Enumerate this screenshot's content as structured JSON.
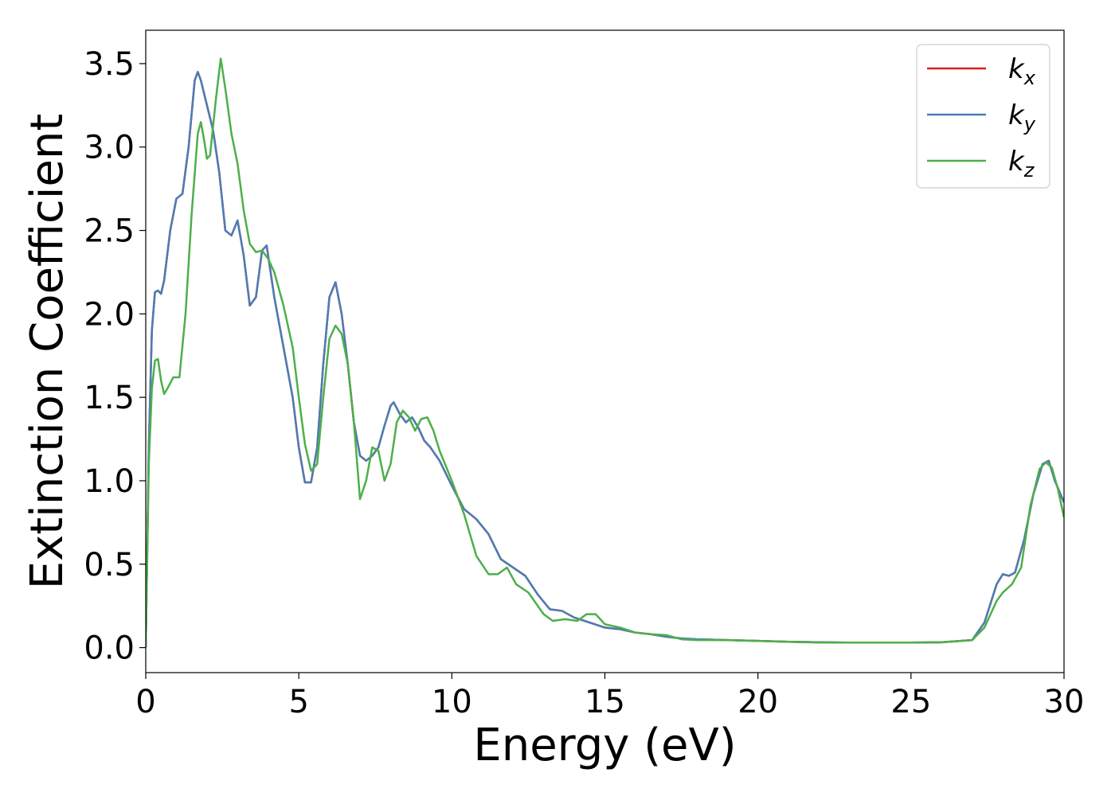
{
  "chart_data": {
    "type": "line",
    "xlabel": "Energy (eV)",
    "ylabel": "Extinction Coefficient",
    "xlim": [
      0,
      30
    ],
    "ylim": [
      -0.15,
      3.7
    ],
    "x_ticks": [
      "0",
      "5",
      "10",
      "15",
      "20",
      "25",
      "30"
    ],
    "y_ticks": [
      "0.0",
      "0.5",
      "1.0",
      "1.5",
      "2.0",
      "2.5",
      "3.0",
      "3.5"
    ],
    "x_tick_values": [
      0,
      5,
      10,
      15,
      20,
      25,
      30
    ],
    "y_tick_values": [
      0,
      0.5,
      1.0,
      1.5,
      2.0,
      2.5,
      3.0,
      3.5
    ],
    "grid": false,
    "legend_position": "top-right",
    "series": [
      {
        "name": "k",
        "subscript": "x",
        "color": "#e41a1c",
        "x": [
          0,
          0.1,
          0.2,
          0.3,
          0.4,
          0.5,
          0.6,
          0.8,
          1.0,
          1.2,
          1.4,
          1.6,
          1.7,
          1.8,
          2.0,
          2.2,
          2.4,
          2.6,
          2.8,
          3.0,
          3.2,
          3.4,
          3.6,
          3.8,
          3.95,
          4.2,
          4.5,
          4.8,
          5.0,
          5.2,
          5.4,
          5.6,
          5.8,
          6.0,
          6.2,
          6.4,
          6.6,
          6.8,
          7.0,
          7.2,
          7.4,
          7.6,
          7.8,
          8.0,
          8.1,
          8.3,
          8.5,
          8.7,
          8.9,
          9.1,
          9.3,
          9.6,
          10.0,
          10.4,
          10.8,
          11.2,
          11.6,
          12.0,
          12.4,
          12.8,
          13.2,
          13.6,
          14.0,
          14.5,
          15.0,
          15.5,
          16.0,
          16.5,
          17.0,
          17.5,
          18.0,
          19.0,
          20.0,
          21.0,
          22.0,
          23.0,
          24.0,
          25.0,
          26.0,
          27.0,
          27.4,
          27.8,
          28.0,
          28.2,
          28.4,
          28.7,
          29.0,
          29.3,
          29.5,
          29.7,
          30.0
        ],
        "values": [
          0.0,
          1.2,
          1.9,
          2.13,
          2.14,
          2.12,
          2.2,
          2.5,
          2.69,
          2.72,
          3.0,
          3.4,
          3.45,
          3.4,
          3.25,
          3.1,
          2.85,
          2.5,
          2.47,
          2.56,
          2.35,
          2.05,
          2.1,
          2.38,
          2.41,
          2.1,
          1.8,
          1.5,
          1.2,
          0.99,
          0.99,
          1.2,
          1.7,
          2.1,
          2.19,
          2.0,
          1.7,
          1.35,
          1.15,
          1.12,
          1.15,
          1.2,
          1.33,
          1.45,
          1.47,
          1.4,
          1.35,
          1.38,
          1.32,
          1.24,
          1.2,
          1.12,
          0.97,
          0.83,
          0.77,
          0.68,
          0.53,
          0.48,
          0.43,
          0.32,
          0.23,
          0.22,
          0.18,
          0.15,
          0.12,
          0.11,
          0.09,
          0.08,
          0.065,
          0.055,
          0.05,
          0.045,
          0.04,
          0.035,
          0.032,
          0.03,
          0.03,
          0.03,
          0.032,
          0.045,
          0.15,
          0.38,
          0.44,
          0.43,
          0.45,
          0.65,
          0.92,
          1.1,
          1.12,
          1.0,
          0.87
        ]
      },
      {
        "name": "k",
        "subscript": "y",
        "color": "#4a7db5",
        "x": [
          0,
          0.1,
          0.2,
          0.3,
          0.4,
          0.5,
          0.6,
          0.8,
          1.0,
          1.2,
          1.4,
          1.6,
          1.7,
          1.8,
          2.0,
          2.2,
          2.4,
          2.6,
          2.8,
          3.0,
          3.2,
          3.4,
          3.6,
          3.8,
          3.95,
          4.2,
          4.5,
          4.8,
          5.0,
          5.2,
          5.4,
          5.6,
          5.8,
          6.0,
          6.2,
          6.4,
          6.6,
          6.8,
          7.0,
          7.2,
          7.4,
          7.6,
          7.8,
          8.0,
          8.1,
          8.3,
          8.5,
          8.7,
          8.9,
          9.1,
          9.3,
          9.6,
          10.0,
          10.4,
          10.8,
          11.2,
          11.6,
          12.0,
          12.4,
          12.8,
          13.2,
          13.6,
          14.0,
          14.5,
          15.0,
          15.5,
          16.0,
          16.5,
          17.0,
          17.5,
          18.0,
          19.0,
          20.0,
          21.0,
          22.0,
          23.0,
          24.0,
          25.0,
          26.0,
          27.0,
          27.4,
          27.8,
          28.0,
          28.2,
          28.4,
          28.7,
          29.0,
          29.3,
          29.5,
          29.7,
          30.0
        ],
        "values": [
          0.0,
          1.2,
          1.9,
          2.13,
          2.14,
          2.12,
          2.2,
          2.5,
          2.69,
          2.72,
          3.0,
          3.4,
          3.45,
          3.4,
          3.25,
          3.1,
          2.85,
          2.5,
          2.47,
          2.56,
          2.35,
          2.05,
          2.1,
          2.38,
          2.41,
          2.1,
          1.8,
          1.5,
          1.2,
          0.99,
          0.99,
          1.2,
          1.7,
          2.1,
          2.19,
          2.0,
          1.7,
          1.35,
          1.15,
          1.12,
          1.15,
          1.2,
          1.33,
          1.45,
          1.47,
          1.4,
          1.35,
          1.38,
          1.32,
          1.24,
          1.2,
          1.12,
          0.97,
          0.83,
          0.77,
          0.68,
          0.53,
          0.48,
          0.43,
          0.32,
          0.23,
          0.22,
          0.18,
          0.15,
          0.12,
          0.11,
          0.09,
          0.08,
          0.065,
          0.055,
          0.05,
          0.045,
          0.04,
          0.035,
          0.032,
          0.03,
          0.03,
          0.03,
          0.032,
          0.045,
          0.15,
          0.38,
          0.44,
          0.43,
          0.45,
          0.65,
          0.92,
          1.1,
          1.12,
          1.0,
          0.87
        ]
      },
      {
        "name": "k",
        "subscript": "z",
        "color": "#4daf4a",
        "x": [
          0,
          0.1,
          0.2,
          0.3,
          0.4,
          0.5,
          0.6,
          0.7,
          0.9,
          1.1,
          1.3,
          1.5,
          1.7,
          1.8,
          1.9,
          2.0,
          2.1,
          2.3,
          2.45,
          2.6,
          2.8,
          3.0,
          3.2,
          3.4,
          3.6,
          3.8,
          4.0,
          4.2,
          4.5,
          4.8,
          5.0,
          5.2,
          5.4,
          5.6,
          5.8,
          6.0,
          6.2,
          6.4,
          6.6,
          6.8,
          7.0,
          7.2,
          7.4,
          7.6,
          7.8,
          8.0,
          8.2,
          8.4,
          8.6,
          8.8,
          9.0,
          9.2,
          9.4,
          9.6,
          10.0,
          10.4,
          10.8,
          11.2,
          11.5,
          11.8,
          12.1,
          12.5,
          13.0,
          13.3,
          13.7,
          14.1,
          14.4,
          14.7,
          15.0,
          15.5,
          16.0,
          16.5,
          17.0,
          17.5,
          18.0,
          19.0,
          20.0,
          21.0,
          22.0,
          23.0,
          24.0,
          25.0,
          26.0,
          27.0,
          27.4,
          27.8,
          28.0,
          28.3,
          28.6,
          28.9,
          29.2,
          29.4,
          29.6,
          29.8,
          30.0
        ],
        "values": [
          0.0,
          1.1,
          1.55,
          1.72,
          1.73,
          1.6,
          1.52,
          1.55,
          1.62,
          1.62,
          2.0,
          2.6,
          3.08,
          3.15,
          3.05,
          2.93,
          2.95,
          3.3,
          3.53,
          3.35,
          3.08,
          2.9,
          2.62,
          2.42,
          2.37,
          2.38,
          2.33,
          2.25,
          2.05,
          1.8,
          1.5,
          1.22,
          1.06,
          1.1,
          1.5,
          1.85,
          1.93,
          1.88,
          1.7,
          1.35,
          0.89,
          1.0,
          1.2,
          1.18,
          1.0,
          1.1,
          1.35,
          1.42,
          1.38,
          1.3,
          1.37,
          1.38,
          1.3,
          1.18,
          1.0,
          0.8,
          0.55,
          0.44,
          0.44,
          0.48,
          0.38,
          0.33,
          0.2,
          0.16,
          0.17,
          0.16,
          0.2,
          0.2,
          0.14,
          0.12,
          0.09,
          0.08,
          0.075,
          0.05,
          0.045,
          0.045,
          0.04,
          0.035,
          0.03,
          0.03,
          0.03,
          0.03,
          0.032,
          0.045,
          0.12,
          0.28,
          0.33,
          0.38,
          0.48,
          0.85,
          1.07,
          1.11,
          1.08,
          0.95,
          0.78
        ]
      }
    ]
  }
}
